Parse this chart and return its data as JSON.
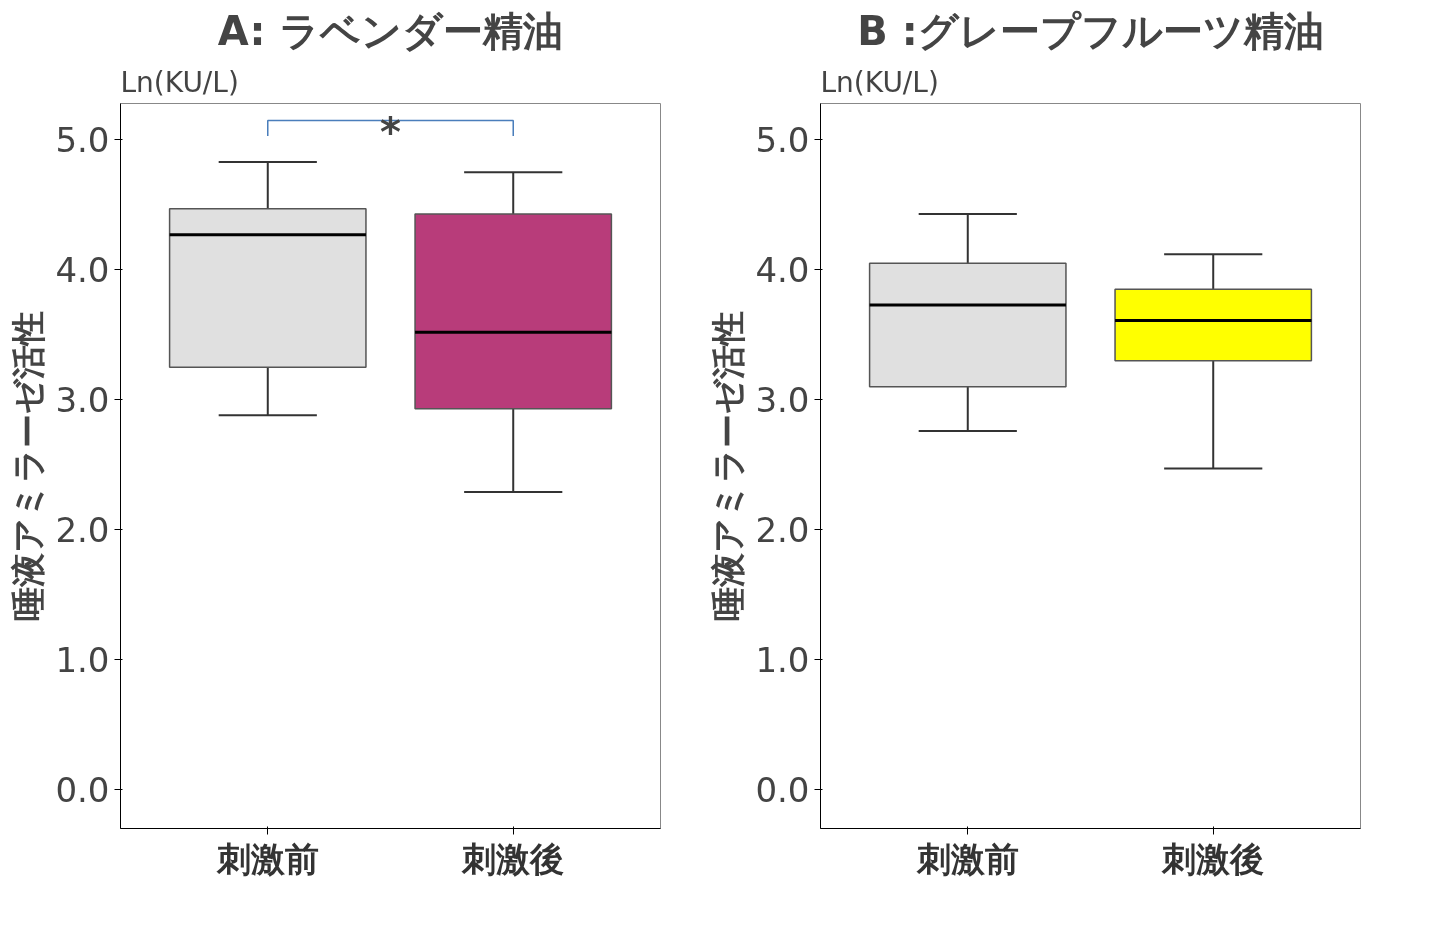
{
  "chart_data": [
    {
      "type": "box",
      "title": "A: ラベンダー精油",
      "ylabel": "唾液アミラーゼ活性",
      "categories": [
        "刺激前",
        "刺激後"
      ],
      "colors": [
        "#e0e0e0",
        "#b83c7a"
      ],
      "boxes": [
        {
          "low": 2.88,
          "q1": 3.25,
          "median": 4.27,
          "q3": 4.47,
          "high": 4.83
        },
        {
          "low": 2.29,
          "q1": 2.93,
          "median": 3.52,
          "q3": 4.43,
          "high": 4.75
        }
      ],
      "ylim": [
        -0.3,
        5.28
      ],
      "yticks": [
        {
          "value": 0,
          "label": "0.0"
        },
        {
          "value": 1,
          "label": "1.0"
        },
        {
          "value": 2,
          "label": "2.0"
        },
        {
          "value": 3,
          "label": "3.0"
        },
        {
          "value": 4,
          "label": "4.0"
        },
        {
          "value": 5,
          "label": "5.0"
        }
      ],
      "grid": false,
      "annotations": [
        "Ln(KU/L)",
        "*"
      ]
    },
    {
      "type": "box",
      "title": "B :グレープフルーツ精油",
      "ylabel": "唾液アミラーゼ活性",
      "categories": [
        "刺激前",
        "刺激後"
      ],
      "colors": [
        "#e0e0e0",
        "#ffff00"
      ],
      "boxes": [
        {
          "low": 2.76,
          "q1": 3.1,
          "median": 3.73,
          "q3": 4.05,
          "high": 4.43
        },
        {
          "low": 2.47,
          "q1": 3.3,
          "median": 3.61,
          "q3": 3.85,
          "high": 4.12
        }
      ],
      "ylim": [
        -0.3,
        5.28
      ],
      "yticks": [
        {
          "value": 0,
          "label": "0.0"
        },
        {
          "value": 1,
          "label": "1.0"
        },
        {
          "value": 2,
          "label": "2.0"
        },
        {
          "value": 3,
          "label": "3.0"
        },
        {
          "value": 4,
          "label": "4.0"
        },
        {
          "value": 5,
          "label": "5.0"
        }
      ],
      "grid": false,
      "annotations": [
        "Ln(KU/L)"
      ]
    }
  ]
}
